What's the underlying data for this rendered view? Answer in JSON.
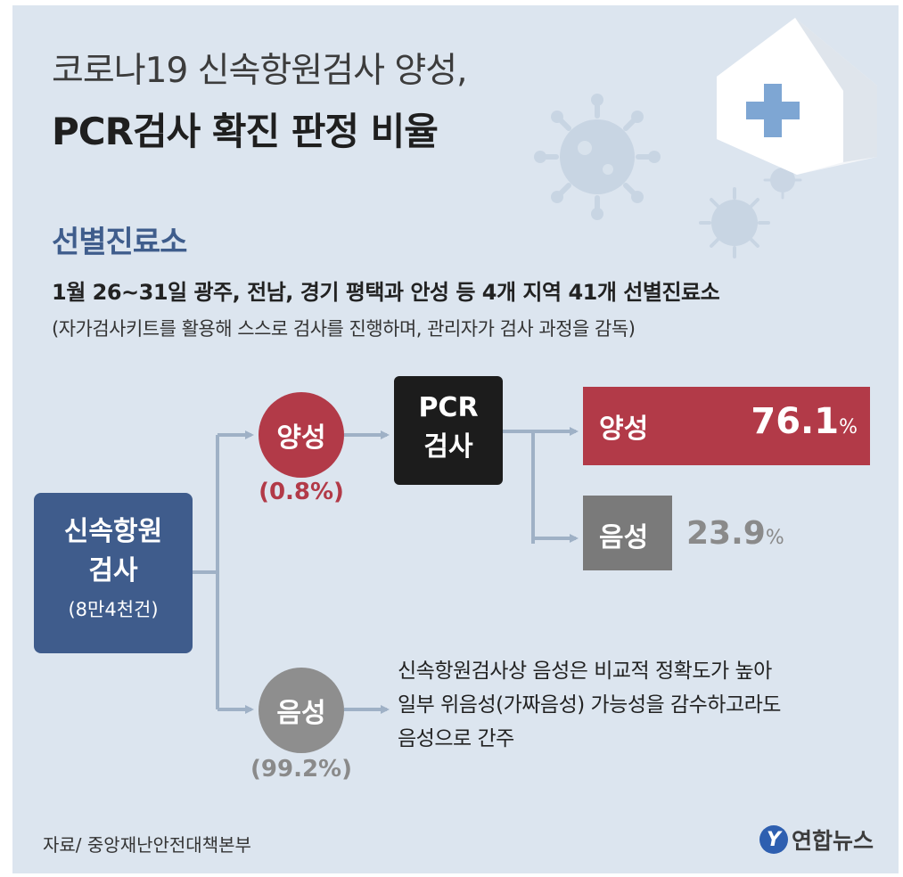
{
  "title": {
    "line1": "코로나19 신속항원검사 양성,",
    "line2": "PCR검사 확진 판정 비율"
  },
  "section": {
    "heading": "선별진료소",
    "desc1": "1월 26~31일 광주, 전남, 경기 평택과 안성 등 4개 지역 41개 선별진료소",
    "desc2": "(자가검사키트를 활용해 스스로 검사를 진행하며, 관리자가 검사 과정을 감독)"
  },
  "flow": {
    "source": {
      "line1": "신속항원",
      "line2": "검사",
      "count": "(8만4천건)"
    },
    "positive": {
      "label": "양성",
      "percent": "(0.8%)"
    },
    "negative": {
      "label": "음성",
      "percent": "(99.2%)"
    },
    "pcr": {
      "line1": "PCR",
      "line2": "검사"
    },
    "pcr_positive": {
      "label": "양성",
      "value": "76.1",
      "unit": "%"
    },
    "pcr_negative": {
      "label": "음성",
      "value": "23.9",
      "unit": "%"
    },
    "note": {
      "line1": "신속항원검사상 음성은 비교적 정확도가 높아",
      "line2": "일부 위음성(가짜음성) 가능성을 감수하고라도",
      "line3": "음성으로 간주"
    }
  },
  "footer": {
    "source": "자료/ 중앙재난안전대책본부",
    "logo_mark": "Y",
    "logo_text": "연합뉴스"
  },
  "icons": [
    "hospital-icon",
    "virus-icon"
  ],
  "colors": {
    "background": "#dce5ef",
    "source_box": "#3f5c8c",
    "positive": "#b23a48",
    "negative": "#8e8e8e",
    "pcr_box": "#1c1c1c",
    "connector": "#9fb1c6"
  }
}
